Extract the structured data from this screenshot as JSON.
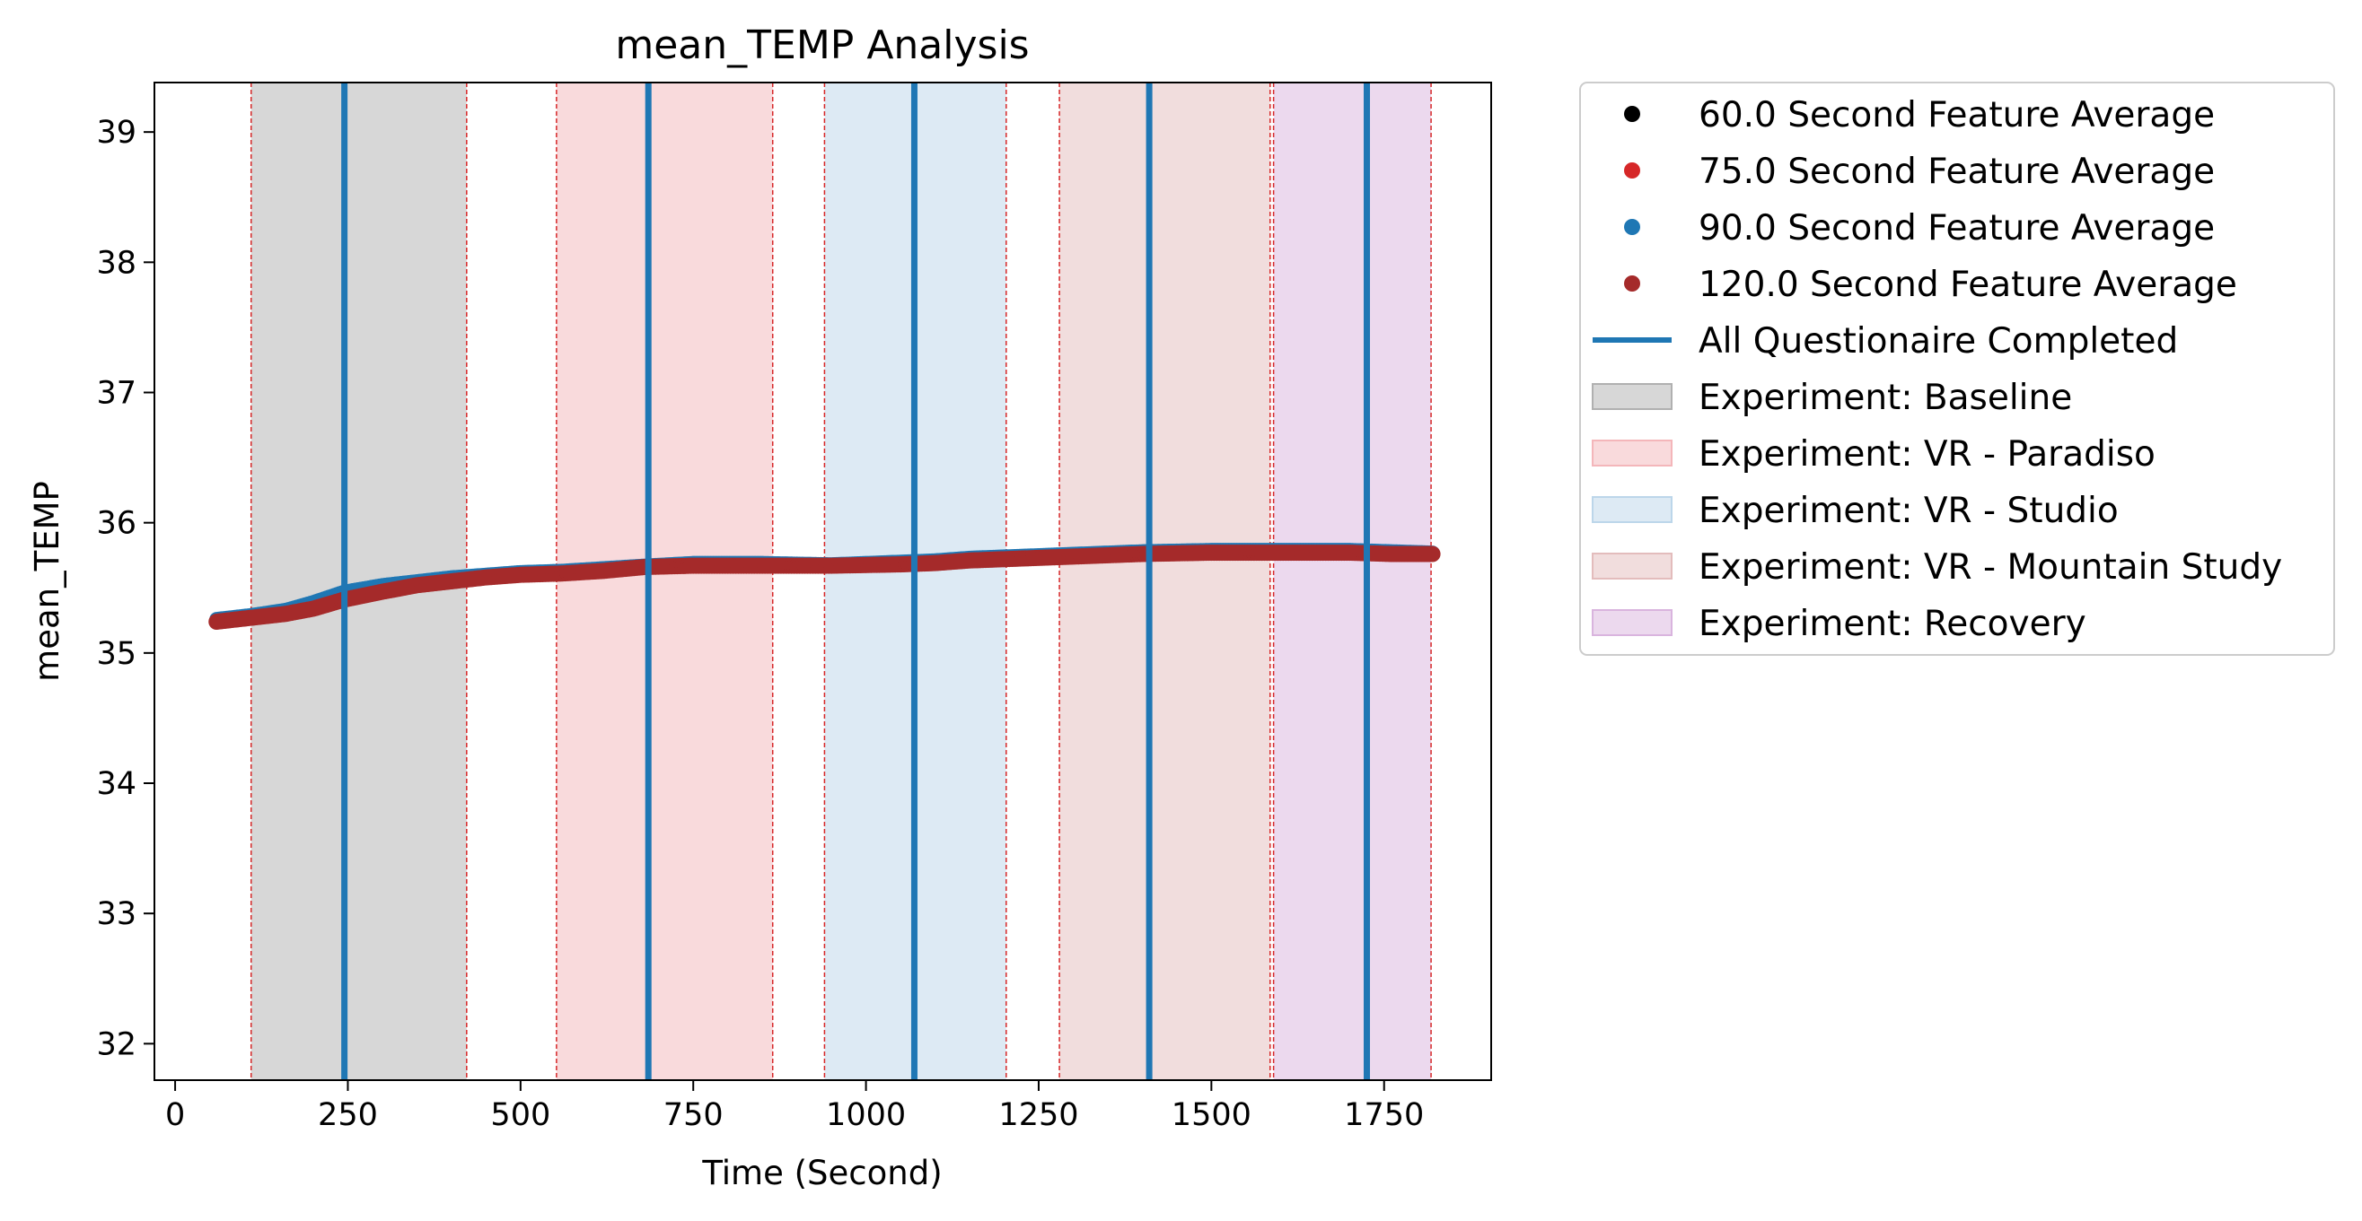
{
  "chart_data": {
    "type": "scatter",
    "title": "mean_TEMP Analysis",
    "xlabel": "Time (Second)",
    "ylabel": "mean_TEMP",
    "xlim": [
      -30,
      1905
    ],
    "ylim": [
      31.72,
      39.38
    ],
    "xticks": [
      0,
      250,
      500,
      750,
      1000,
      1250,
      1500,
      1750
    ],
    "yticks": [
      32,
      33,
      34,
      35,
      36,
      37,
      38,
      39
    ],
    "grid": false,
    "legend_position": "outside-right-top",
    "series": [
      {
        "name": "60.0 Second Feature Average",
        "color": "#000000",
        "x": [
          60,
          110,
          160,
          200,
          245,
          300,
          350,
          400,
          450,
          500,
          560,
          620,
          680,
          750,
          850,
          950,
          1050,
          1100,
          1150,
          1200,
          1300,
          1400,
          1500,
          1600,
          1700,
          1760,
          1820
        ],
        "y": [
          35.25,
          35.28,
          35.32,
          35.37,
          35.45,
          35.5,
          35.54,
          35.57,
          35.59,
          35.61,
          35.62,
          35.64,
          35.66,
          35.68,
          35.68,
          35.67,
          35.69,
          35.7,
          35.72,
          35.73,
          35.75,
          35.77,
          35.78,
          35.78,
          35.78,
          35.77,
          35.76
        ]
      },
      {
        "name": "75.0 Second Feature Average",
        "color": "#d62728",
        "x": [
          60,
          110,
          160,
          200,
          245,
          300,
          350,
          400,
          450,
          500,
          560,
          620,
          680,
          750,
          850,
          950,
          1050,
          1100,
          1150,
          1200,
          1300,
          1400,
          1500,
          1600,
          1700,
          1760,
          1820
        ],
        "y": [
          35.25,
          35.28,
          35.32,
          35.37,
          35.45,
          35.5,
          35.54,
          35.57,
          35.59,
          35.61,
          35.62,
          35.64,
          35.66,
          35.68,
          35.68,
          35.67,
          35.69,
          35.7,
          35.72,
          35.73,
          35.75,
          35.77,
          35.78,
          35.78,
          35.78,
          35.77,
          35.76
        ]
      },
      {
        "name": "90.0 Second Feature Average",
        "color": "#1f77b4",
        "x": [
          60,
          110,
          160,
          200,
          245,
          300,
          350,
          400,
          450,
          500,
          560,
          620,
          680,
          750,
          850,
          950,
          1050,
          1100,
          1150,
          1200,
          1300,
          1400,
          1500,
          1600,
          1700,
          1760,
          1820
        ],
        "y": [
          35.26,
          35.29,
          35.33,
          35.39,
          35.47,
          35.52,
          35.55,
          35.58,
          35.6,
          35.62,
          35.63,
          35.65,
          35.67,
          35.69,
          35.69,
          35.68,
          35.7,
          35.71,
          35.73,
          35.74,
          35.76,
          35.78,
          35.79,
          35.79,
          35.79,
          35.78,
          35.77
        ]
      },
      {
        "name": "120.0 Second Feature Average",
        "color": "#a52a2a",
        "x": [
          60,
          110,
          160,
          200,
          245,
          300,
          350,
          400,
          450,
          500,
          560,
          620,
          680,
          750,
          850,
          950,
          1050,
          1100,
          1150,
          1200,
          1300,
          1400,
          1500,
          1600,
          1700,
          1760,
          1820
        ],
        "y": [
          35.24,
          35.27,
          35.3,
          35.34,
          35.41,
          35.47,
          35.52,
          35.55,
          35.58,
          35.6,
          35.61,
          35.63,
          35.66,
          35.67,
          35.67,
          35.67,
          35.68,
          35.69,
          35.71,
          35.72,
          35.74,
          35.76,
          35.77,
          35.77,
          35.77,
          35.76,
          35.76
        ]
      }
    ],
    "vlines": {
      "name": "All Questionaire Completed",
      "color": "#1f77b4",
      "x": [
        245,
        685,
        1070,
        1410,
        1725
      ]
    },
    "spans": [
      {
        "name": "Experiment: Baseline",
        "start": 110,
        "end": 422,
        "color": "#b0b0b0",
        "opacity": 0.5
      },
      {
        "name": "Experiment: VR - Paradiso",
        "start": 552,
        "end": 865,
        "color": "#f4b6ba",
        "opacity": 0.5
      },
      {
        "name": "Experiment: VR - Studio",
        "start": 940,
        "end": 1203,
        "color": "#bcd6ea",
        "opacity": 0.5
      },
      {
        "name": "Experiment: VR - Mountain Study",
        "start": 1280,
        "end": 1585,
        "color": "#e3bcbc",
        "opacity": 0.5
      },
      {
        "name": "Experiment: Recovery",
        "start": 1590,
        "end": 1818,
        "color": "#d9b4de",
        "opacity": 0.5
      }
    ],
    "span_edge_color": "#d62728"
  }
}
